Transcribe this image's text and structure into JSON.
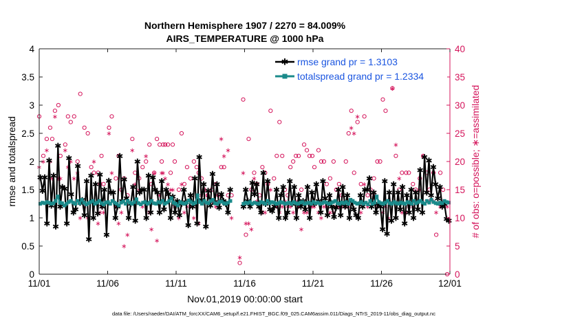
{
  "chart_data": {
    "type": "line",
    "title_line1": "Northern Hemisphere 1907 / 2270 = 84.009%",
    "title_line2": "AIRS_TEMPERATURE @ 1000 hPa",
    "xlabel": "Nov.01,2019 00:00:00 start",
    "ylabel": "rmse and totalspread",
    "ylabel_right": "# of obs: o=possible; ∗=assimilated",
    "footnote": "data file: /Users/raeder/DAI/ATM_forcXX/CAM6_setup/f.e21.FHIST_BGC.f09_025.CAM6assim.011/Diags_NTrS_2019-11/obs_diag_output.nc",
    "xlim": [
      0,
      30
    ],
    "ylim": [
      0,
      4
    ],
    "ylim_right": [
      0,
      40
    ],
    "x_ticks": [
      0,
      5,
      10,
      15,
      20,
      25,
      30
    ],
    "x_tick_labels": [
      "11/01",
      "11/06",
      "11/11",
      "11/16",
      "11/21",
      "11/26",
      "12/01"
    ],
    "y_ticks": [
      0,
      0.5,
      1,
      1.5,
      2,
      2.5,
      3,
      3.5,
      4
    ],
    "y_tick_labels": [
      "0",
      "0.5",
      "1",
      "1.5",
      "2",
      "2.5",
      "3",
      "3.5",
      "4"
    ],
    "y_ticks_right": [
      0,
      5,
      10,
      15,
      20,
      25,
      30,
      35,
      40
    ],
    "y_tick_labels_right": [
      "0",
      "5",
      "10",
      "15",
      "20",
      "25",
      "30",
      "35",
      "40"
    ],
    "legend_position": "top-right",
    "colors": {
      "rmse": "#000000",
      "spread": "#1a8a8a",
      "obs": "#d4135a",
      "legend_text": "#1a55e0"
    },
    "series": [
      {
        "name": "rmse grand pr = 1.3103",
        "values": [
          1.72,
          1.48,
          1.72,
          0.9,
          2.02,
          1.22,
          1.75,
          0.85,
          2.28,
          1.2,
          1.55,
          1.52,
          0.9,
          2.06,
          1.42,
          1.1,
          1.15,
          1.92,
          1.27,
          1.32,
          1.05,
          1.65,
          0.62,
          1.75,
          1.0,
          1.6,
          1.08,
          1.77,
          1.2,
          1.5,
          0.7,
          1.66,
          1.45,
          1.45,
          1.0,
          1.2,
          2.1,
          1.3,
          1.68,
          1.35,
          1.0,
          1.25,
          1.55,
          0.95,
          2.0,
          1.45,
          1.5,
          1.5,
          1.0,
          1.75,
          1.1,
          1.72,
          1.5,
          1.45,
          1.1,
          1.65,
          1.15,
          1.5,
          1.42,
          1.0,
          1.38,
          1.1,
          1.3,
          1.05,
          1.25,
          1.5,
          1.28,
          0.87,
          1.4,
          1.2,
          1.7,
          0.9,
          2.08,
          1.32,
          1.6,
          0.85,
          1.48,
          1.22,
          1.78,
          1.28,
          1.6,
          1.18,
          1.42,
          1.3,
          1.25,
          1.1,
          1.5,
          1.08,
          1.66,
          1.1,
          1.2,
          1.45,
          1.2,
          1.5,
          1.3,
          1.2,
          1.62,
          1.42,
          1.6,
          1.2,
          1.1,
          1.8,
          1.25,
          1.65,
          1.15,
          1.12,
          1.2,
          1.5,
          1.0,
          1.4,
          1.55,
          1.0,
          1.1,
          1.65,
          1.25,
          1.55,
          1.0,
          1.4,
          1.2,
          1.3,
          1.15,
          1.55,
          1.0,
          1.45,
          1.25,
          1.6,
          1.3,
          1.1,
          1.65,
          1.35,
          1.05,
          1.4,
          1.2,
          1.02,
          1.18,
          1.5,
          1.05,
          1.55,
          1.2,
          1.4,
          1.0,
          1.3,
          1.15,
          1.05,
          1.0,
          1.4,
          1.2,
          1.5,
          1.5,
          1.7,
          1.2,
          1.45,
          1.1,
          1.25,
          1.2,
          0.8,
          1.65,
          0.72,
          1.45,
          0.95,
          1.6,
          1.0,
          1.45,
          1.15,
          1.55,
          0.9,
          1.4,
          1.1,
          1.5,
          1.0,
          1.45,
          1.15,
          1.85,
          1.1,
          2.08,
          1.45,
          2.02,
          1.4,
          1.9,
          1.6,
          1.35,
          1.55,
          1.2,
          1.25,
          0.98,
          0.95
        ],
        "gaps": [
          {
            "start": 14.1,
            "end": 14.9
          }
        ]
      },
      {
        "name": "totalspread grand pr = 1.2334",
        "values": [
          1.25,
          1.27,
          1.26,
          1.28,
          1.27,
          1.25,
          1.26,
          1.3,
          1.38,
          1.27,
          1.26,
          1.22,
          1.25,
          1.28,
          1.3,
          1.27,
          1.25,
          1.3,
          1.26,
          1.32,
          1.27,
          1.24,
          1.26,
          1.28,
          1.3,
          1.25,
          1.27,
          1.3,
          1.26,
          1.24,
          1.27,
          1.28,
          1.25,
          1.3,
          1.27,
          1.25,
          1.22,
          1.27,
          1.29,
          1.25,
          1.3,
          1.27,
          1.25,
          1.28,
          1.33,
          1.26,
          1.24,
          1.27,
          1.28,
          1.25,
          1.27,
          1.3,
          1.26,
          1.25,
          1.28,
          1.27,
          1.3,
          1.25,
          1.27,
          1.3,
          1.35,
          1.27,
          1.25,
          1.22,
          1.28,
          1.26,
          1.25,
          1.27,
          1.31,
          1.28,
          1.25,
          1.27,
          1.4,
          1.28,
          1.25,
          1.3,
          1.27,
          1.26,
          1.3,
          1.32,
          1.26,
          1.25,
          1.28,
          1.29,
          1.26,
          1.25,
          1.27,
          1.3,
          1.25,
          1.27,
          1.26,
          1.28,
          1.29,
          1.25,
          1.27,
          1.26,
          1.28,
          1.25,
          1.27,
          1.26,
          1.25,
          1.28,
          1.27,
          1.25,
          1.3,
          1.26,
          1.28,
          1.27,
          1.25,
          1.26,
          1.28,
          1.27,
          1.25,
          1.26,
          1.27,
          1.25,
          1.28,
          1.26,
          1.25,
          1.27,
          1.28,
          1.25,
          1.26,
          1.27,
          1.25,
          1.28,
          1.26,
          1.27,
          1.25,
          1.26,
          1.28,
          1.27,
          1.25,
          1.26,
          1.28,
          1.3,
          1.26,
          1.25,
          1.27,
          1.26,
          1.28,
          1.25,
          1.32,
          1.3,
          1.27,
          1.25,
          1.26,
          1.28,
          1.25,
          1.27,
          1.24,
          1.3,
          1.25,
          1.27,
          1.38,
          1.28,
          1.26,
          1.25,
          1.27,
          1.3,
          1.26,
          1.25,
          1.28,
          1.26,
          1.25,
          1.27,
          1.26,
          1.25,
          1.28,
          1.27,
          1.25,
          1.3,
          1.26,
          1.28,
          1.3,
          1.27,
          1.25,
          1.3,
          1.27,
          1.32,
          1.28,
          1.26,
          1.25,
          1.27,
          1.26,
          1.3,
          1.28,
          1.27
        ],
        "gaps": [
          {
            "start": 14.1,
            "end": 14.9
          }
        ]
      }
    ],
    "obs_possible": [
      [
        0,
        28
      ],
      [
        0.3,
        21
      ],
      [
        0.55,
        24
      ],
      [
        0.8,
        26
      ],
      [
        0.95,
        24
      ],
      [
        1.15,
        29
      ],
      [
        1.4,
        30
      ],
      [
        1.55,
        21
      ],
      [
        1.9,
        23
      ],
      [
        2.1,
        28
      ],
      [
        2.3,
        27
      ],
      [
        2.55,
        28
      ],
      [
        2.8,
        20
      ],
      [
        3.0,
        32
      ],
      [
        3.3,
        26
      ],
      [
        3.55,
        25
      ],
      [
        3.8,
        19
      ],
      [
        4.0,
        18
      ],
      [
        4.3,
        18
      ],
      [
        4.45,
        16
      ],
      [
        4.55,
        21
      ],
      [
        4.7,
        16
      ],
      [
        5.1,
        26
      ],
      [
        5.3,
        28
      ],
      [
        5.6,
        17
      ],
      [
        5.8,
        21
      ],
      [
        6.0,
        15
      ],
      [
        6.2,
        17
      ],
      [
        6.45,
        14
      ],
      [
        6.8,
        24
      ],
      [
        7.0,
        18
      ],
      [
        7.3,
        17
      ],
      [
        7.55,
        19
      ],
      [
        7.8,
        20
      ],
      [
        8.05,
        23
      ],
      [
        8.2,
        16
      ],
      [
        8.4,
        18
      ],
      [
        8.6,
        24
      ],
      [
        8.8,
        23
      ],
      [
        8.95,
        20
      ],
      [
        9.05,
        23
      ],
      [
        9.2,
        23
      ],
      [
        9.4,
        23
      ],
      [
        9.6,
        18
      ],
      [
        9.75,
        23
      ],
      [
        9.9,
        20
      ],
      [
        10.2,
        15
      ],
      [
        10.4,
        25
      ],
      [
        10.6,
        16
      ],
      [
        10.8,
        19
      ],
      [
        11.05,
        17
      ],
      [
        11.3,
        20
      ],
      [
        11.5,
        19
      ],
      [
        11.65,
        18
      ],
      [
        11.85,
        17
      ],
      [
        12.05,
        15
      ],
      [
        12.3,
        14
      ],
      [
        12.6,
        15
      ],
      [
        12.9,
        16
      ],
      [
        13.1,
        14
      ],
      [
        13.3,
        19
      ],
      [
        13.5,
        19
      ],
      [
        13.8,
        14
      ],
      [
        14.05,
        14
      ],
      [
        14.65,
        2
      ],
      [
        14.9,
        31
      ],
      [
        15.1,
        7
      ],
      [
        15.3,
        24
      ],
      [
        15.5,
        15
      ],
      [
        15.7,
        18
      ],
      [
        15.9,
        16
      ],
      [
        16.1,
        14
      ],
      [
        16.3,
        19
      ],
      [
        16.5,
        18
      ],
      [
        16.7,
        16
      ],
      [
        16.9,
        29
      ],
      [
        17.15,
        17
      ],
      [
        17.35,
        21
      ],
      [
        17.55,
        27
      ],
      [
        17.75,
        21
      ],
      [
        17.95,
        15
      ],
      [
        18.15,
        14
      ],
      [
        18.35,
        19
      ],
      [
        18.55,
        20
      ],
      [
        18.75,
        21
      ],
      [
        18.95,
        21
      ],
      [
        19.15,
        15
      ],
      [
        19.35,
        23
      ],
      [
        19.55,
        22
      ],
      [
        19.75,
        21
      ],
      [
        19.95,
        21
      ],
      [
        20.1,
        19
      ],
      [
        20.4,
        22
      ],
      [
        20.6,
        20
      ],
      [
        20.8,
        20
      ],
      [
        21.0,
        16
      ],
      [
        21.25,
        17
      ],
      [
        21.5,
        20
      ],
      [
        21.7,
        15
      ],
      [
        21.9,
        16
      ],
      [
        22.1,
        14
      ],
      [
        22.4,
        20
      ],
      [
        22.6,
        25
      ],
      [
        22.8,
        29
      ],
      [
        23.0,
        18
      ],
      [
        23.25,
        27
      ],
      [
        23.5,
        16
      ],
      [
        23.75,
        28
      ],
      [
        24.0,
        14
      ],
      [
        24.2,
        15
      ],
      [
        24.45,
        17
      ],
      [
        24.7,
        20
      ],
      [
        24.9,
        20
      ],
      [
        25.1,
        31
      ],
      [
        25.3,
        29
      ],
      [
        25.5,
        13
      ],
      [
        25.8,
        33
      ],
      [
        26.05,
        21
      ],
      [
        26.3,
        15
      ],
      [
        26.5,
        18
      ],
      [
        26.8,
        18
      ],
      [
        27.0,
        18
      ],
      [
        27.3,
        16
      ],
      [
        27.5,
        15
      ],
      [
        27.8,
        17
      ],
      [
        28.05,
        21
      ],
      [
        28.3,
        18
      ],
      [
        28.5,
        15
      ],
      [
        28.8,
        18
      ],
      [
        29.0,
        7
      ],
      [
        29.3,
        18
      ],
      [
        29.5,
        15
      ],
      [
        29.8,
        0
      ]
    ],
    "obs_assimilated": [
      [
        0,
        19
      ],
      [
        0.3,
        20
      ],
      [
        0.55,
        22
      ],
      [
        0.8,
        20
      ],
      [
        0.95,
        17
      ],
      [
        1.15,
        28
      ],
      [
        1.4,
        17
      ],
      [
        1.55,
        17
      ],
      [
        1.9,
        22
      ],
      [
        2.1,
        19
      ],
      [
        2.3,
        20
      ],
      [
        2.55,
        17
      ],
      [
        2.8,
        18
      ],
      [
        3.0,
        10
      ],
      [
        3.3,
        12
      ],
      [
        3.55,
        10
      ],
      [
        3.8,
        13
      ],
      [
        4.0,
        20
      ],
      [
        4.3,
        9
      ],
      [
        4.45,
        11
      ],
      [
        4.55,
        12
      ],
      [
        4.7,
        11
      ],
      [
        5.1,
        25
      ],
      [
        5.3,
        18
      ],
      [
        5.6,
        12
      ],
      [
        5.8,
        9
      ],
      [
        6.0,
        11
      ],
      [
        6.2,
        5
      ],
      [
        6.45,
        7
      ],
      [
        6.8,
        22
      ],
      [
        7.0,
        16
      ],
      [
        7.3,
        15
      ],
      [
        7.55,
        12
      ],
      [
        7.8,
        21
      ],
      [
        8.05,
        11
      ],
      [
        8.2,
        8
      ],
      [
        8.4,
        18
      ],
      [
        8.6,
        6
      ],
      [
        8.8,
        14
      ],
      [
        8.95,
        18
      ],
      [
        9.05,
        18
      ],
      [
        9.2,
        17
      ],
      [
        9.4,
        16
      ],
      [
        9.6,
        15
      ],
      [
        9.75,
        15
      ],
      [
        9.9,
        12
      ],
      [
        10.2,
        10
      ],
      [
        10.4,
        16
      ],
      [
        10.6,
        11
      ],
      [
        10.8,
        12
      ],
      [
        11.05,
        12
      ],
      [
        11.3,
        10
      ],
      [
        11.5,
        12
      ],
      [
        11.65,
        9
      ],
      [
        11.85,
        14
      ],
      [
        12.05,
        15
      ],
      [
        12.3,
        14
      ],
      [
        12.6,
        13
      ],
      [
        12.9,
        12
      ],
      [
        13.1,
        13
      ],
      [
        13.3,
        24
      ],
      [
        13.5,
        21
      ],
      [
        13.8,
        22
      ],
      [
        14.05,
        10
      ],
      [
        14.65,
        3
      ],
      [
        14.9,
        18
      ],
      [
        15.1,
        9
      ],
      [
        15.3,
        9
      ],
      [
        15.5,
        8
      ],
      [
        15.7,
        17
      ],
      [
        15.9,
        13
      ],
      [
        16.1,
        12
      ],
      [
        16.3,
        11
      ],
      [
        16.5,
        11
      ],
      [
        16.7,
        13
      ],
      [
        16.9,
        15
      ],
      [
        17.15,
        12
      ],
      [
        17.35,
        12
      ],
      [
        17.55,
        11
      ],
      [
        17.75,
        12
      ],
      [
        17.95,
        13
      ],
      [
        18.15,
        12
      ],
      [
        18.35,
        12
      ],
      [
        18.55,
        11
      ],
      [
        18.75,
        13
      ],
      [
        18.95,
        12
      ],
      [
        19.15,
        8
      ],
      [
        19.35,
        11
      ],
      [
        19.55,
        11
      ],
      [
        19.75,
        12
      ],
      [
        19.95,
        12
      ],
      [
        20.1,
        12
      ],
      [
        20.4,
        11
      ],
      [
        20.6,
        10
      ],
      [
        20.8,
        12
      ],
      [
        21.0,
        12
      ],
      [
        21.25,
        11
      ],
      [
        21.5,
        11
      ],
      [
        21.7,
        12
      ],
      [
        21.9,
        12
      ],
      [
        22.1,
        12
      ],
      [
        22.4,
        12
      ],
      [
        22.6,
        12
      ],
      [
        22.8,
        26
      ],
      [
        23.0,
        25
      ],
      [
        23.25,
        28
      ],
      [
        23.5,
        11
      ],
      [
        23.75,
        16
      ],
      [
        24.0,
        12
      ],
      [
        24.2,
        13
      ],
      [
        24.45,
        14
      ],
      [
        24.7,
        12
      ],
      [
        24.9,
        12
      ],
      [
        25.1,
        11
      ],
      [
        25.3,
        12
      ],
      [
        25.5,
        10
      ],
      [
        25.8,
        33
      ],
      [
        26.05,
        23
      ],
      [
        26.3,
        17
      ],
      [
        26.5,
        11
      ],
      [
        26.8,
        11
      ],
      [
        27.0,
        12
      ],
      [
        27.3,
        12
      ],
      [
        27.5,
        13
      ],
      [
        27.8,
        15
      ],
      [
        28.05,
        21
      ],
      [
        28.3,
        13
      ],
      [
        28.5,
        13
      ],
      [
        28.8,
        13
      ],
      [
        29.0,
        11
      ],
      [
        29.3,
        12
      ],
      [
        29.5,
        13
      ],
      [
        29.8,
        12
      ]
    ]
  }
}
